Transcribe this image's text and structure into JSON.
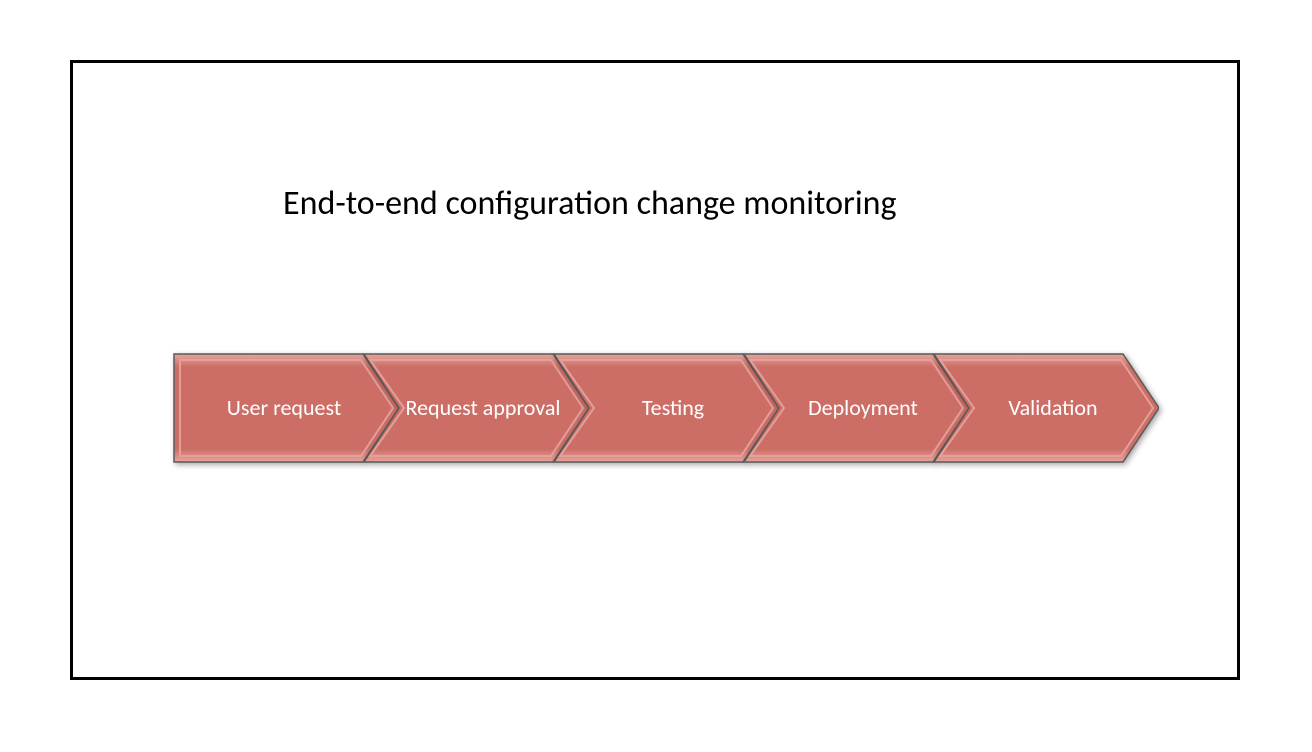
{
  "diagram": {
    "type": "process-chevron",
    "title": "End-to-end configuration change monitoring",
    "title_fontsize": 34,
    "title_color": "#000000",
    "background_color": "#ffffff",
    "frame_border_color": "#000000",
    "frame_border_width": 3,
    "chevron": {
      "fill": "#cc6e66",
      "highlight": "#e7a39d",
      "stroke": "#5a5a5a",
      "stroke_width": 1.5,
      "label_color": "#ffffff",
      "label_fontsize": 22,
      "height": 110,
      "step_width": 190,
      "notch_depth": 36
    },
    "steps": [
      {
        "label": "User request"
      },
      {
        "label": "Request approval"
      },
      {
        "label": "Testing"
      },
      {
        "label": "Deployment"
      },
      {
        "label": "Validation"
      }
    ]
  }
}
